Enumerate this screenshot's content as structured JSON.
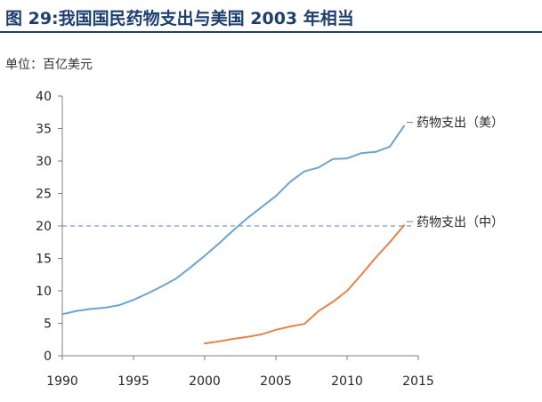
{
  "title": "图 29:我国国民药物支出与美国 2003 年相当",
  "unit_label": "单位：百亿美元",
  "chart_data": {
    "type": "line",
    "title": "图 29:我国国民药物支出与美国 2003 年相当",
    "xlabel": "",
    "ylabel": "单位：百亿美元",
    "xlim": [
      1990,
      2015
    ],
    "ylim": [
      0,
      40
    ],
    "x_ticks": [
      "1990",
      "1995",
      "2000",
      "2005",
      "2010",
      "2015"
    ],
    "y_ticks": [
      "0",
      "5",
      "10",
      "15",
      "20",
      "25",
      "30",
      "35",
      "40"
    ],
    "grid": false,
    "reference_line": {
      "y": 20,
      "style": "dashed"
    },
    "series": [
      {
        "name": "药物支出（美）",
        "color": "#6fa3cf",
        "x": [
          1990,
          1991,
          1992,
          1993,
          1994,
          1995,
          1996,
          1997,
          1998,
          1999,
          2000,
          2001,
          2002,
          2003,
          2004,
          2005,
          2006,
          2007,
          2008,
          2009,
          2010,
          2011,
          2012,
          2013,
          2014
        ],
        "y": [
          6.4,
          6.9,
          7.2,
          7.4,
          7.8,
          8.6,
          9.6,
          10.7,
          11.9,
          13.6,
          15.4,
          17.3,
          19.3,
          21.2,
          22.9,
          24.6,
          26.8,
          28.4,
          29.0,
          30.3,
          30.4,
          31.2,
          31.4,
          32.2,
          35.4
        ]
      },
      {
        "name": "药物支出（中）",
        "color": "#e5834a",
        "x": [
          2000,
          2001,
          2002,
          2003,
          2004,
          2005,
          2006,
          2007,
          2008,
          2009,
          2010,
          2011,
          2012,
          2013,
          2014
        ],
        "y": [
          1.9,
          2.2,
          2.6,
          2.9,
          3.3,
          4.0,
          4.5,
          4.9,
          6.9,
          8.3,
          10.0,
          12.5,
          15.1,
          17.5,
          20.1
        ]
      }
    ]
  }
}
